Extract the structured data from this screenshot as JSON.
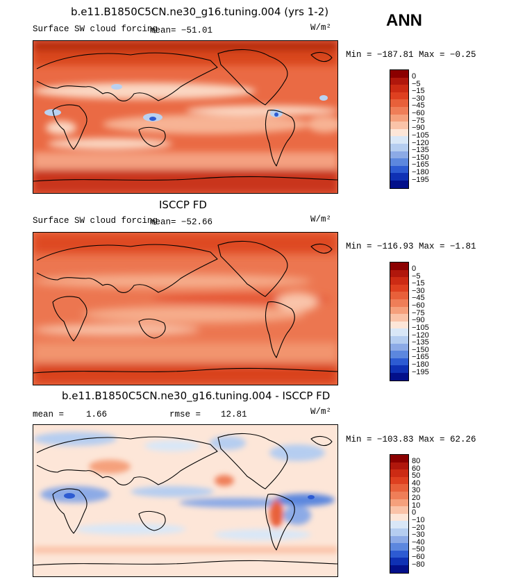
{
  "season": "ANN",
  "panels": [
    {
      "title": "b.e11.B1850C5CN.ne30_g16.tuning.004 (yrs 1-2)",
      "field": "Surface SW cloud forcing",
      "mean_text": "mean=  −51.01",
      "units": "W/m²",
      "minmax": "Min = −187.81  Max =  −0.25",
      "levels": [
        "0",
        "−5",
        "−15",
        "−30",
        "−45",
        "−60",
        "−75",
        "−90",
        "−105",
        "−120",
        "−135",
        "−150",
        "−165",
        "−180",
        "−195"
      ],
      "colors": [
        "#8b0000",
        "#b0170c",
        "#cc2b14",
        "#de4020",
        "#e8603a",
        "#ef7e58",
        "#f5a07c",
        "#fac3a8",
        "#fde6d8",
        "#d9e7f7",
        "#b5cdf0",
        "#8caae6",
        "#5c87de",
        "#2d5bd2",
        "#0f31b4",
        "#03108a"
      ]
    },
    {
      "title": "ISCCP FD",
      "field": "Surface SW cloud forcing",
      "mean_text": "mean=  −52.66",
      "units": "W/m²",
      "minmax": "Min = −116.93  Max =  −1.81",
      "levels": [
        "0",
        "−5",
        "−15",
        "−30",
        "−45",
        "−60",
        "−75",
        "−90",
        "−105",
        "−120",
        "−135",
        "−150",
        "−165",
        "−180",
        "−195"
      ],
      "colors": [
        "#8b0000",
        "#b0170c",
        "#cc2b14",
        "#de4020",
        "#e8603a",
        "#ef7e58",
        "#f5a07c",
        "#fac3a8",
        "#fde6d8",
        "#d9e7f7",
        "#b5cdf0",
        "#8caae6",
        "#5c87de",
        "#2d5bd2",
        "#0f31b4",
        "#03108a"
      ]
    },
    {
      "title": "b.e11.B1850C5CN.ne30_g16.tuning.004 - ISCCP FD",
      "mean_label": "mean =",
      "mean_value": "1.66",
      "rmse_label": "rmse =",
      "rmse_value": "12.81",
      "units": "W/m²",
      "minmax": "Min = −103.83  Max =  62.26",
      "levels": [
        "80",
        "60",
        "50",
        "40",
        "30",
        "20",
        "10",
        "0",
        "−10",
        "−20",
        "−30",
        "−40",
        "−50",
        "−60",
        "−80"
      ],
      "colors": [
        "#8b0000",
        "#b0170c",
        "#cc2b14",
        "#de4020",
        "#e8603a",
        "#ef7e58",
        "#f5a07c",
        "#fac3a8",
        "#fde6d8",
        "#d9e7f7",
        "#b5cdf0",
        "#8caae6",
        "#5c87de",
        "#2d5bd2",
        "#0f31b4",
        "#03108a"
      ]
    }
  ]
}
